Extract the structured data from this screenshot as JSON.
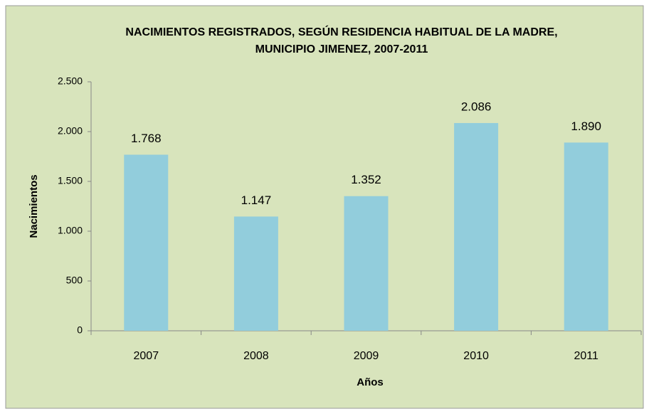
{
  "chart_data": {
    "type": "bar",
    "title": [
      "NACIMIENTOS REGISTRADOS, SEGÚN RESIDENCIA HABITUAL DE LA MADRE,",
      "MUNICIPIO JIMENEZ, 2007-2011"
    ],
    "y_label": "Nacimientos",
    "x_label": "Años",
    "categories": [
      "2007",
      "2008",
      "2009",
      "2010",
      "2011"
    ],
    "values": [
      1768,
      1147,
      1352,
      2086,
      1890
    ],
    "value_labels": [
      "1.768",
      "1.147",
      "1.352",
      "2.086",
      "1.890"
    ],
    "color": "#92cddc",
    "ylim": [
      0,
      2500
    ],
    "yticks": [
      0,
      500,
      {
        "value": 1000,
        "label": "1.000"
      },
      {
        "value": 1500,
        "label": "1.500"
      },
      {
        "value": 2000,
        "label": "2.000"
      },
      {
        "value": 2500,
        "label": "2.500"
      }
    ],
    "grid": false
  }
}
